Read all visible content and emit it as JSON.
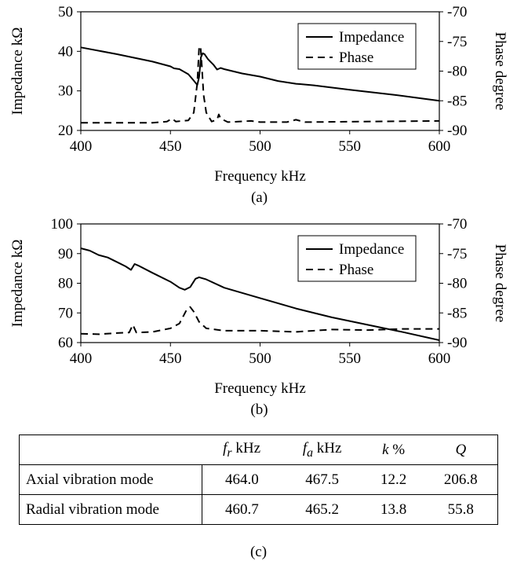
{
  "chart_data": [
    {
      "type": "line",
      "panel_label": "(a)",
      "xlabel": "Frequency kHz",
      "ylabel": "Impedance kΩ",
      "y2label": "Phase degree",
      "xlim": [
        400,
        600
      ],
      "ylim": [
        20,
        50
      ],
      "y2lim": [
        -90,
        -70
      ],
      "xticks": [
        400,
        450,
        500,
        550,
        600
      ],
      "yticks": [
        20,
        30,
        40,
        50
      ],
      "y2ticks": [
        -70,
        -75,
        -80,
        -85,
        -90
      ],
      "legend": {
        "position": "top-right",
        "entries": [
          "Impedance",
          "Phase"
        ]
      },
      "grid": false,
      "series": [
        {
          "name": "Impedance",
          "axis": "left",
          "style": "solid",
          "points": [
            [
              400,
              41.0
            ],
            [
              420,
              39.3
            ],
            [
              440,
              37.4
            ],
            [
              450,
              36.2
            ],
            [
              452,
              35.7
            ],
            [
              455,
              35.5
            ],
            [
              460,
              34.2
            ],
            [
              463,
              32.6
            ],
            [
              465,
              31.5
            ],
            [
              466,
              33.5
            ],
            [
              467,
              38.5
            ],
            [
              468,
              39.5
            ],
            [
              469,
              39.3
            ],
            [
              471,
              38.0
            ],
            [
              474,
              36.6
            ],
            [
              476,
              35.4
            ],
            [
              478,
              35.8
            ],
            [
              480,
              35.5
            ],
            [
              490,
              34.4
            ],
            [
              500,
              33.6
            ],
            [
              510,
              32.5
            ],
            [
              520,
              31.8
            ],
            [
              530,
              31.4
            ],
            [
              550,
              30.3
            ],
            [
              575,
              29.0
            ],
            [
              600,
              27.5
            ]
          ]
        },
        {
          "name": "Phase",
          "axis": "right",
          "style": "dashed",
          "points": [
            [
              400,
              -88.7
            ],
            [
              420,
              -88.7
            ],
            [
              440,
              -88.7
            ],
            [
              448,
              -88.5
            ],
            [
              451,
              -88.0
            ],
            [
              453,
              -88.5
            ],
            [
              460,
              -88.3
            ],
            [
              463,
              -87.0
            ],
            [
              465,
              -82.0
            ],
            [
              466,
              -76.0
            ],
            [
              466.8,
              -75.8
            ],
            [
              467.5,
              -79.0
            ],
            [
              468.5,
              -84.0
            ],
            [
              470,
              -87.0
            ],
            [
              473,
              -88.5
            ],
            [
              476,
              -88.2
            ],
            [
              477,
              -87.3
            ],
            [
              478,
              -88.0
            ],
            [
              482,
              -88.6
            ],
            [
              495,
              -88.4
            ],
            [
              500,
              -88.6
            ],
            [
              515,
              -88.6
            ],
            [
              520,
              -88.2
            ],
            [
              525,
              -88.6
            ],
            [
              600,
              -88.4
            ]
          ]
        }
      ]
    },
    {
      "type": "line",
      "panel_label": "(b)",
      "xlabel": "Frequency kHz",
      "ylabel": "Impedance kΩ",
      "y2label": "Phase degree",
      "xlim": [
        400,
        600
      ],
      "ylim": [
        60,
        100
      ],
      "y2lim": [
        -90,
        -70
      ],
      "xticks": [
        400,
        450,
        500,
        550,
        600
      ],
      "yticks": [
        60,
        70,
        80,
        90,
        100
      ],
      "y2ticks": [
        -70,
        -75,
        -80,
        -85,
        -90
      ],
      "legend": {
        "position": "top-right",
        "entries": [
          "Impedance",
          "Phase"
        ]
      },
      "grid": false,
      "series": [
        {
          "name": "Impedance",
          "axis": "left",
          "style": "solid",
          "points": [
            [
              400,
              91.8
            ],
            [
              405,
              91.0
            ],
            [
              410,
              89.5
            ],
            [
              415,
              88.7
            ],
            [
              420,
              87.2
            ],
            [
              425,
              85.7
            ],
            [
              428,
              84.5
            ],
            [
              430,
              86.5
            ],
            [
              432,
              86.0
            ],
            [
              440,
              83.5
            ],
            [
              450,
              80.5
            ],
            [
              455,
              78.5
            ],
            [
              458,
              77.8
            ],
            [
              461,
              78.7
            ],
            [
              464,
              81.5
            ],
            [
              466,
              82.0
            ],
            [
              470,
              81.3
            ],
            [
              480,
              78.5
            ],
            [
              500,
              75.0
            ],
            [
              520,
              71.5
            ],
            [
              540,
              68.5
            ],
            [
              560,
              66.0
            ],
            [
              580,
              63.5
            ],
            [
              600,
              60.8
            ]
          ]
        },
        {
          "name": "Phase",
          "axis": "right",
          "style": "dashed",
          "points": [
            [
              400,
              -88.5
            ],
            [
              410,
              -88.6
            ],
            [
              420,
              -88.4
            ],
            [
              427,
              -88.3
            ],
            [
              429,
              -87.0
            ],
            [
              431,
              -88.3
            ],
            [
              440,
              -88.2
            ],
            [
              450,
              -87.6
            ],
            [
              455,
              -86.8
            ],
            [
              459,
              -84.5
            ],
            [
              461,
              -84.0
            ],
            [
              463,
              -84.8
            ],
            [
              466,
              -86.5
            ],
            [
              470,
              -87.6
            ],
            [
              480,
              -88.0
            ],
            [
              500,
              -88.0
            ],
            [
              520,
              -88.2
            ],
            [
              540,
              -87.8
            ],
            [
              560,
              -87.9
            ],
            [
              580,
              -87.7
            ],
            [
              600,
              -87.7
            ]
          ]
        }
      ]
    }
  ],
  "table": {
    "panel_label": "(c)",
    "headers": [
      "",
      "f_r kHz",
      "f_a kHz",
      "k %",
      "Q"
    ],
    "header_parts": [
      {
        "sym": "",
        "unit": ""
      },
      {
        "sym": "f",
        "sub": "r",
        "unit": " kHz"
      },
      {
        "sym": "f",
        "sub": "a",
        "unit": " kHz"
      },
      {
        "sym": "k",
        "sub": "",
        "unit": " %"
      },
      {
        "sym": "Q",
        "sub": "",
        "unit": ""
      }
    ],
    "rows": [
      [
        "Axial vibration mode",
        "464.0",
        "467.5",
        "12.2",
        "206.8"
      ],
      [
        "Radial vibration mode",
        "460.7",
        "465.2",
        "13.8",
        "55.8"
      ]
    ]
  }
}
